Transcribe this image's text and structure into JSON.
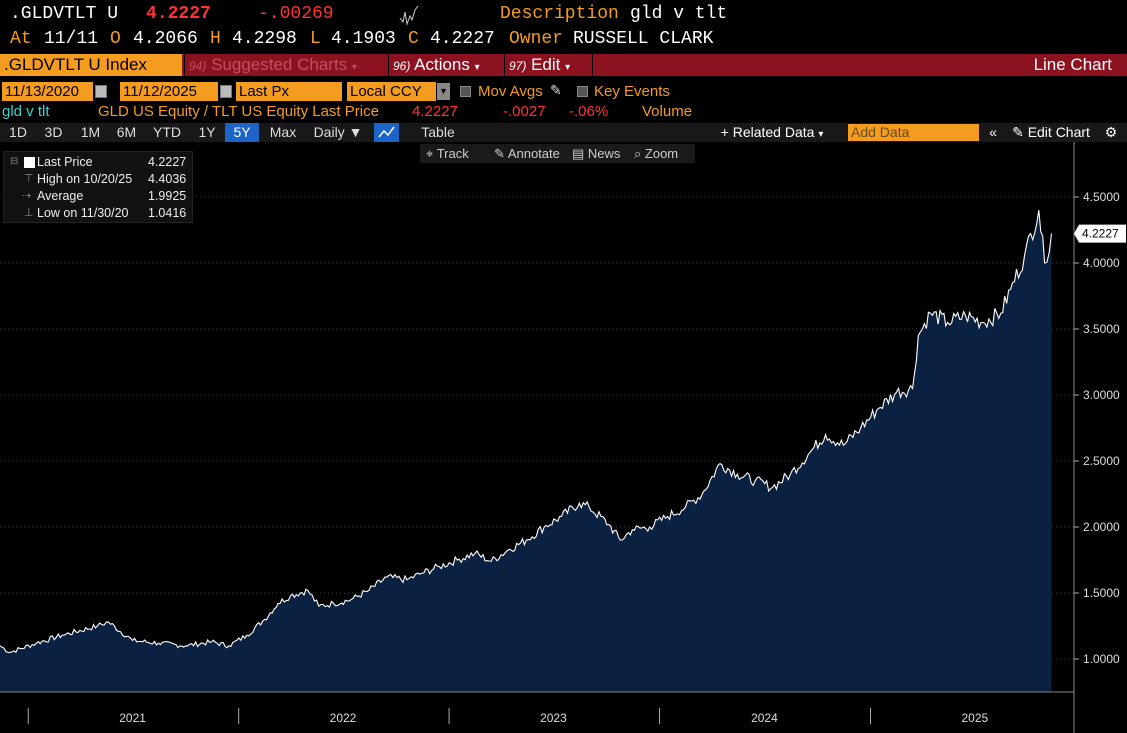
{
  "header": {
    "ticker": ".GLDVTLT U",
    "price": "4.2227",
    "change": "-.00269",
    "description_label": "Description",
    "description": "gld v tlt",
    "at_label": "At",
    "date": "11/11",
    "open_label": "O",
    "open": "4.2066",
    "high_label": "H",
    "high": "4.2298",
    "low_label": "L",
    "low": "4.1903",
    "close_label": "C",
    "close": "4.2227",
    "owner_label": "Owner",
    "owner": "RUSSELL CLARK"
  },
  "menubar": {
    "security": ".GLDVTLT U Index",
    "suggested_num": "94)",
    "suggested": "Suggested Charts",
    "actions_num": "96)",
    "actions": "Actions",
    "edit_num": "97)",
    "edit": "Edit",
    "chart_type": "Line Chart"
  },
  "controls": {
    "start_date": "11/13/2020",
    "end_date": "11/12/2025",
    "field": "Last Px",
    "currency": "Local CCY",
    "mov_avgs": "Mov Avgs",
    "key_events": "Key Events"
  },
  "series_info": {
    "name": "gld v tlt",
    "definition": "GLD US Equity / TLT US Equity Last Price",
    "last": "4.2227",
    "change": "-.0027",
    "pct": "-.06%",
    "volume": "Volume"
  },
  "range_bar": {
    "ranges": [
      "1D",
      "3D",
      "1M",
      "6M",
      "YTD",
      "1Y",
      "5Y",
      "Max"
    ],
    "active": "5Y",
    "frequency": "Daily",
    "table": "Table",
    "related_data": "+ Related Data",
    "add_data_placeholder": "Add Data",
    "edit_chart": "Edit Chart"
  },
  "chart_tools": {
    "track": "Track",
    "annotate": "Annotate",
    "news": "News",
    "zoom": "Zoom"
  },
  "legend": {
    "last_label": "Last Price",
    "last_value": "4.2227",
    "high_label": "High on 10/20/25",
    "high_value": "4.4036",
    "avg_label": "Average",
    "avg_value": "1.9925",
    "low_label": "Low on 11/30/20",
    "low_value": "1.0416"
  },
  "colors": {
    "accent_orange": "#f39c1f",
    "menu_red": "#8c1220",
    "area_fill": "#0b2142",
    "line": "#ffffff",
    "active_blue": "#1d64c8"
  },
  "chart_data": {
    "type": "area",
    "series": [
      {
        "name": "gld v tlt",
        "points": [
          [
            "2020-11-13",
            1.1
          ],
          [
            "2020-11-30",
            1.05
          ],
          [
            "2021-01-15",
            1.12
          ],
          [
            "2021-03-01",
            1.18
          ],
          [
            "2021-05-01",
            1.25
          ],
          [
            "2021-05-20",
            1.28
          ],
          [
            "2021-07-01",
            1.14
          ],
          [
            "2021-08-15",
            1.12
          ],
          [
            "2021-10-01",
            1.1
          ],
          [
            "2021-11-15",
            1.13
          ],
          [
            "2021-12-15",
            1.1
          ],
          [
            "2022-01-15",
            1.18
          ],
          [
            "2022-02-15",
            1.3
          ],
          [
            "2022-03-10",
            1.42
          ],
          [
            "2022-04-01",
            1.48
          ],
          [
            "2022-05-01",
            1.52
          ],
          [
            "2022-05-20",
            1.4
          ],
          [
            "2022-06-15",
            1.42
          ],
          [
            "2022-07-15",
            1.45
          ],
          [
            "2022-08-15",
            1.52
          ],
          [
            "2022-09-15",
            1.62
          ],
          [
            "2022-10-20",
            1.6
          ],
          [
            "2022-11-15",
            1.65
          ],
          [
            "2022-12-15",
            1.7
          ],
          [
            "2023-01-15",
            1.75
          ],
          [
            "2023-02-15",
            1.8
          ],
          [
            "2023-03-15",
            1.74
          ],
          [
            "2023-04-15",
            1.83
          ],
          [
            "2023-05-15",
            1.9
          ],
          [
            "2023-06-15",
            2.0
          ],
          [
            "2023-07-15",
            2.08
          ],
          [
            "2023-08-15",
            2.18
          ],
          [
            "2023-09-01",
            2.15
          ],
          [
            "2023-10-05",
            2.02
          ],
          [
            "2023-10-25",
            1.9
          ],
          [
            "2023-11-15",
            1.98
          ],
          [
            "2023-12-15",
            2.0
          ],
          [
            "2024-01-15",
            2.08
          ],
          [
            "2024-02-15",
            2.15
          ],
          [
            "2024-03-15",
            2.25
          ],
          [
            "2024-04-15",
            2.48
          ],
          [
            "2024-05-15",
            2.4
          ],
          [
            "2024-06-15",
            2.35
          ],
          [
            "2024-07-15",
            2.3
          ],
          [
            "2024-08-15",
            2.4
          ],
          [
            "2024-09-15",
            2.55
          ],
          [
            "2024-10-15",
            2.7
          ],
          [
            "2024-11-15",
            2.62
          ],
          [
            "2024-12-15",
            2.75
          ],
          [
            "2025-01-15",
            2.9
          ],
          [
            "2025-02-15",
            3.02
          ],
          [
            "2025-03-15",
            3.05
          ],
          [
            "2025-03-25",
            3.45
          ],
          [
            "2025-04-15",
            3.62
          ],
          [
            "2025-05-15",
            3.55
          ],
          [
            "2025-06-15",
            3.6
          ],
          [
            "2025-07-15",
            3.55
          ],
          [
            "2025-08-15",
            3.62
          ],
          [
            "2025-09-01",
            3.8
          ],
          [
            "2025-09-25",
            4.05
          ],
          [
            "2025-10-20",
            4.4
          ],
          [
            "2025-10-30",
            4.0
          ],
          [
            "2025-11-11",
            4.2227
          ]
        ]
      }
    ],
    "ylim": [
      0.75,
      4.75
    ],
    "yticks": [
      1.0,
      1.5,
      2.0,
      2.5,
      3.0,
      3.5,
      4.0,
      4.5
    ],
    "ytick_labels": [
      "1.0000",
      "1.5000",
      "2.0000",
      "2.5000",
      "3.0000",
      "3.5000",
      "4.0000",
      "4.5000"
    ],
    "xlim": [
      "2020-11-13",
      "2025-12-20"
    ],
    "xtick_labels": [
      "2021",
      "2022",
      "2023",
      "2024",
      "2025"
    ],
    "last_value_label": "4.2227",
    "grid": true,
    "legend_position": "top-left"
  }
}
